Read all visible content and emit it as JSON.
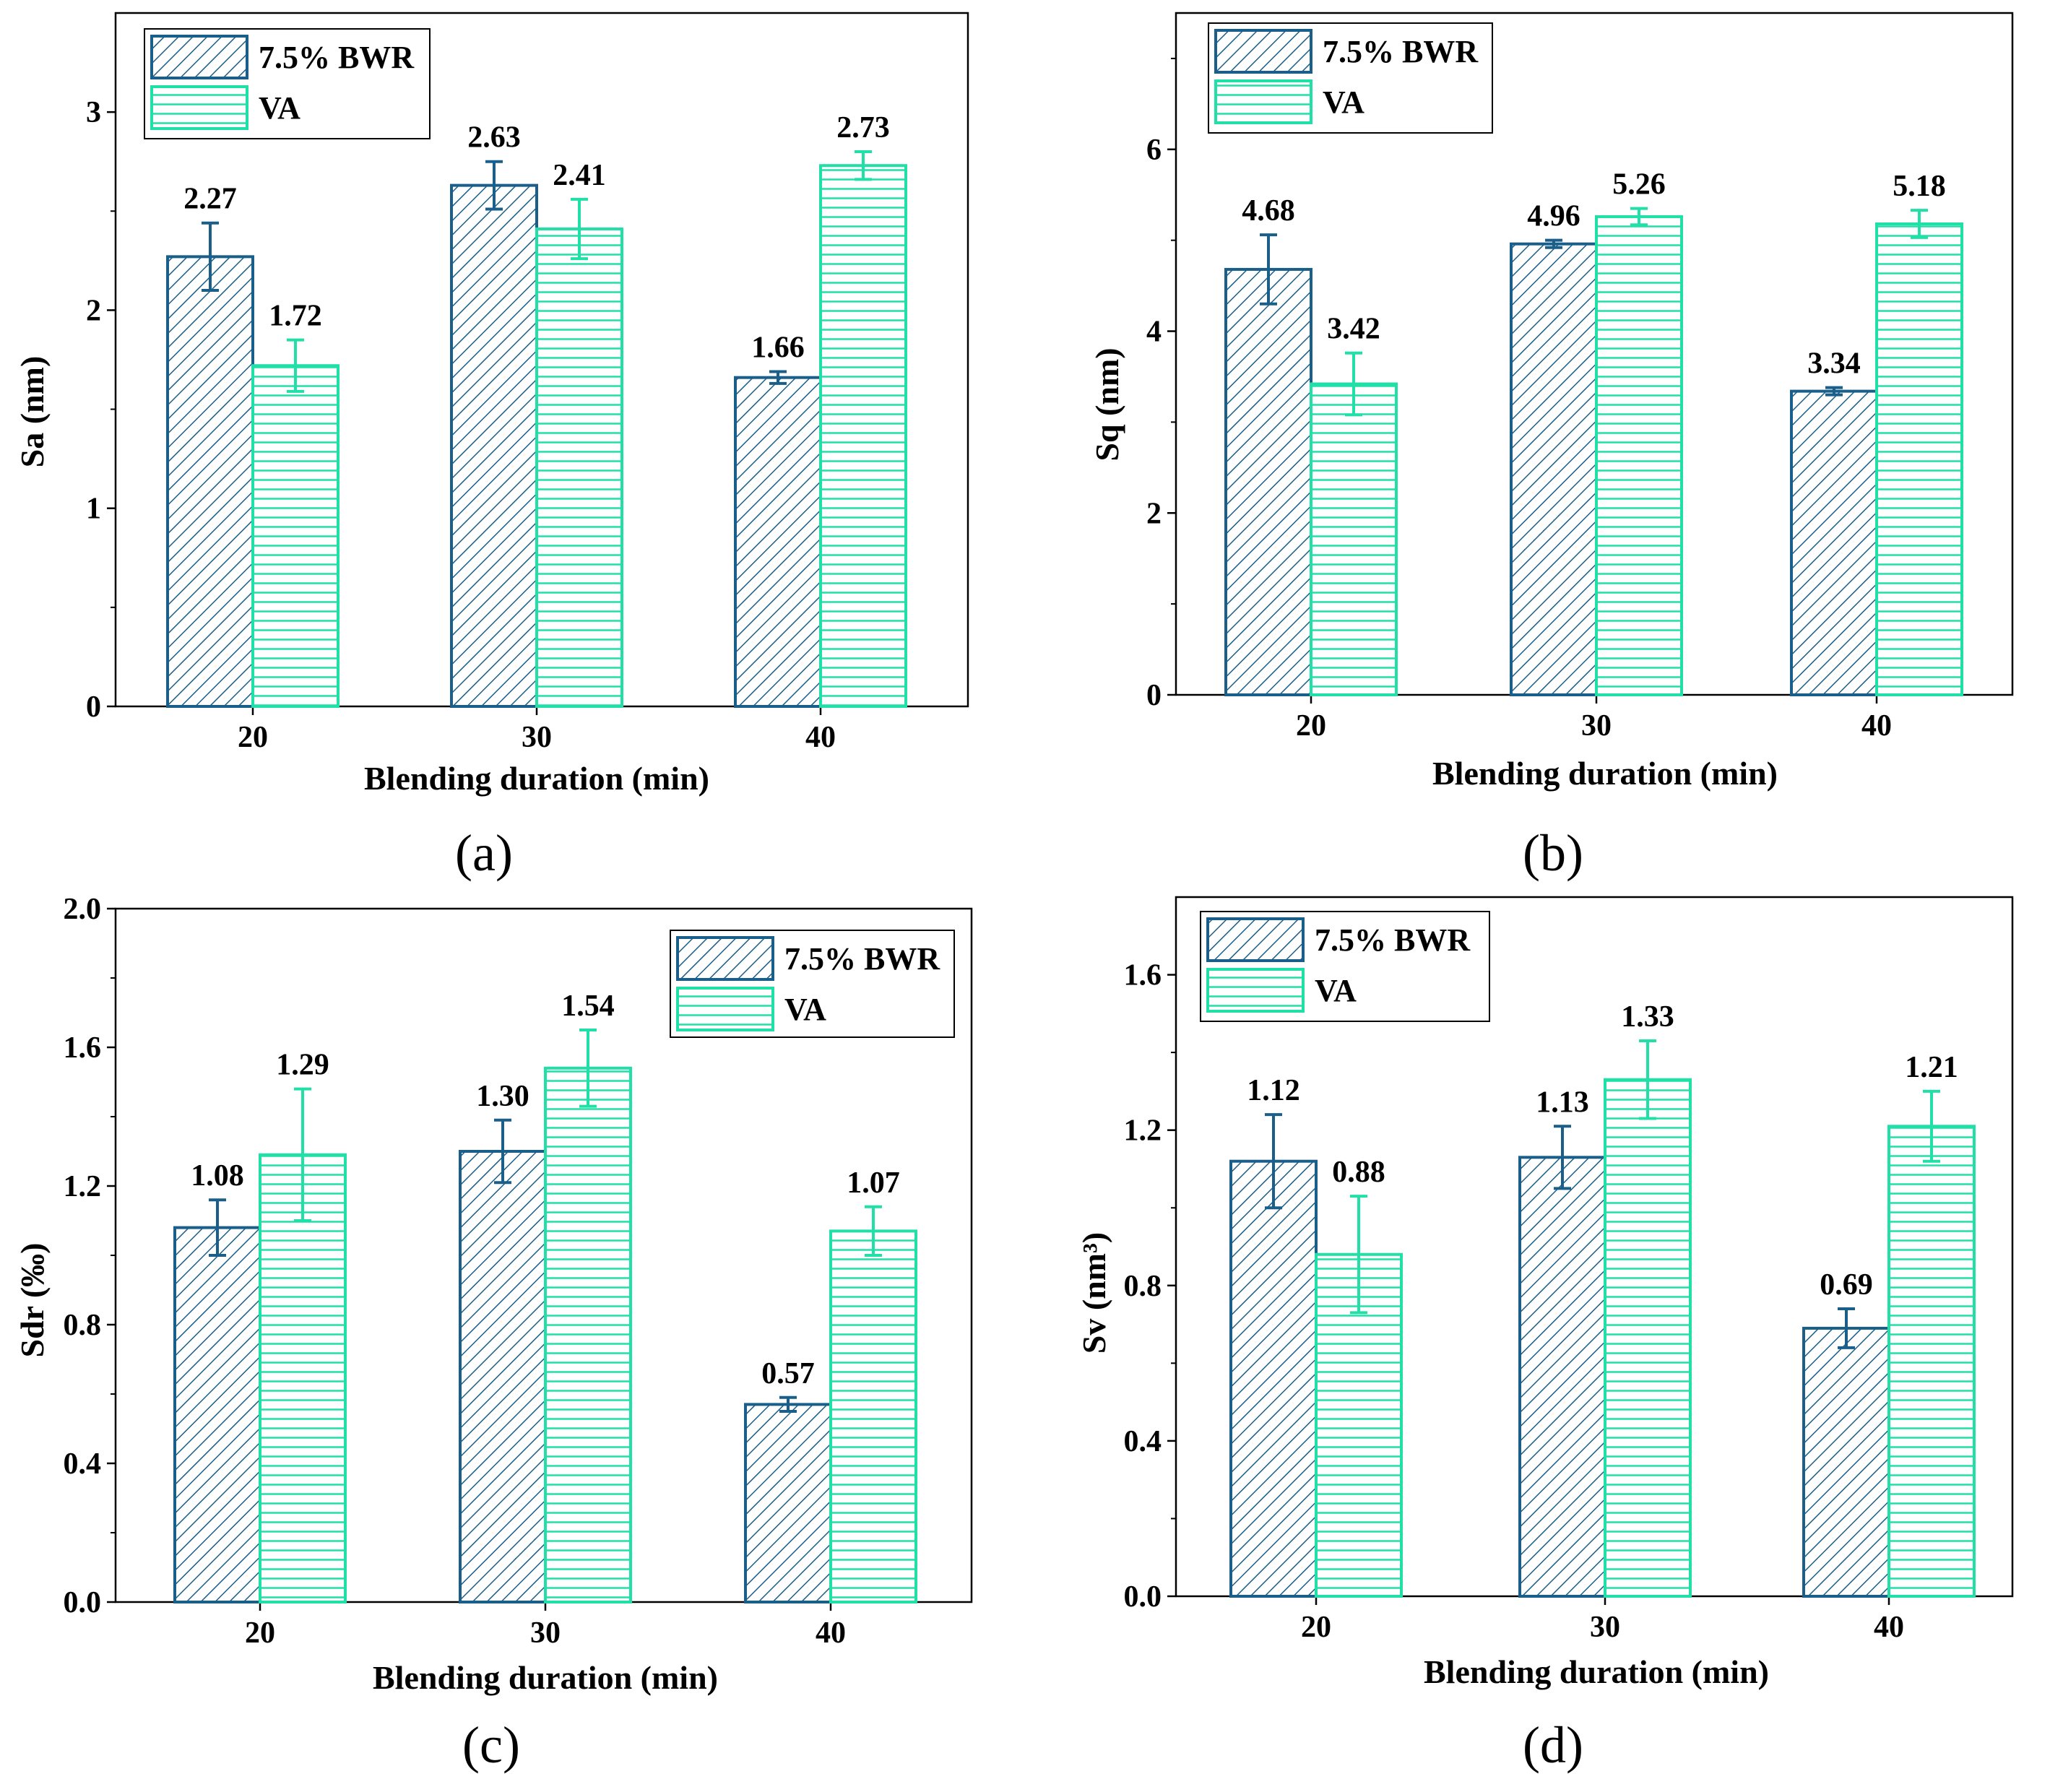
{
  "colors": {
    "bwr": "#1a5e8a",
    "va": "#20e0a8",
    "axis": "#000000"
  },
  "chart_data": [
    {
      "type": "bar",
      "panel": "a",
      "categories": [
        "20",
        "30",
        "40"
      ],
      "xlabel": "Blending duration (min)",
      "ylabel": "Sa (nm)",
      "ylim": [
        0,
        3.5
      ],
      "yticks": [
        "0",
        "1",
        "2",
        "3"
      ],
      "ytick_values": [
        0,
        1,
        2,
        3
      ],
      "legend_position": "top-left",
      "series": [
        {
          "name": "7.5% BWR",
          "values": [
            2.27,
            2.63,
            1.66
          ],
          "errors": [
            0.17,
            0.12,
            0.03
          ],
          "labels": [
            "2.27",
            "2.63",
            "1.66"
          ],
          "pattern": "diagonal-hatch"
        },
        {
          "name": "VA",
          "values": [
            1.72,
            2.41,
            2.73
          ],
          "errors": [
            0.13,
            0.15,
            0.07
          ],
          "labels": [
            "1.72",
            "2.41",
            "2.73"
          ],
          "pattern": "horizontal-lines"
        }
      ]
    },
    {
      "type": "bar",
      "panel": "b",
      "categories": [
        "20",
        "30",
        "40"
      ],
      "xlabel": "Blending duration (min)",
      "ylabel": "Sq (nm)",
      "ylim": [
        0,
        7.5
      ],
      "yticks": [
        "0",
        "2",
        "4",
        "6"
      ],
      "ytick_values": [
        0,
        2,
        4,
        6
      ],
      "legend_position": "top-left",
      "series": [
        {
          "name": "7.5% BWR",
          "values": [
            4.68,
            4.96,
            3.34
          ],
          "errors": [
            0.38,
            0.04,
            0.04
          ],
          "labels": [
            "4.68",
            "4.96",
            "3.34"
          ],
          "pattern": "diagonal-hatch"
        },
        {
          "name": "VA",
          "values": [
            3.42,
            5.26,
            5.18
          ],
          "errors": [
            0.34,
            0.09,
            0.15
          ],
          "labels": [
            "3.42",
            "5.26",
            "5.18"
          ],
          "pattern": "horizontal-lines"
        }
      ]
    },
    {
      "type": "bar",
      "panel": "c",
      "categories": [
        "20",
        "30",
        "40"
      ],
      "xlabel": "Blending duration (min)",
      "ylabel": "Sdr (‰)",
      "ylim": [
        0,
        2.0
      ],
      "yticks": [
        "0.0",
        "0.4",
        "0.8",
        "1.2",
        "1.6",
        "2.0"
      ],
      "ytick_values": [
        0,
        0.4,
        0.8,
        1.2,
        1.6,
        2.0
      ],
      "legend_position": "top-right",
      "series": [
        {
          "name": "7.5% BWR",
          "values": [
            1.08,
            1.3,
            0.57
          ],
          "errors": [
            0.08,
            0.09,
            0.02
          ],
          "labels": [
            "1.08",
            "1.30",
            "0.57"
          ],
          "pattern": "diagonal-hatch"
        },
        {
          "name": "VA",
          "values": [
            1.29,
            1.54,
            1.07
          ],
          "errors": [
            0.19,
            0.11,
            0.07
          ],
          "labels": [
            "1.29",
            "1.54",
            "1.07"
          ],
          "pattern": "horizontal-lines"
        }
      ]
    },
    {
      "type": "bar",
      "panel": "d",
      "categories": [
        "20",
        "30",
        "40"
      ],
      "xlabel": "Blending duration (min)",
      "ylabel": "Sv (nm³)",
      "ylim": [
        0,
        1.8
      ],
      "yticks": [
        "0.0",
        "0.4",
        "0.8",
        "1.2",
        "1.6"
      ],
      "ytick_values": [
        0,
        0.4,
        0.8,
        1.2,
        1.6
      ],
      "legend_position": "top-left",
      "series": [
        {
          "name": "7.5% BWR",
          "values": [
            1.12,
            1.13,
            0.69
          ],
          "errors": [
            0.12,
            0.08,
            0.05
          ],
          "labels": [
            "1.12",
            "1.13",
            "0.69"
          ],
          "pattern": "diagonal-hatch"
        },
        {
          "name": "VA",
          "values": [
            0.88,
            1.33,
            1.21
          ],
          "errors": [
            0.15,
            0.1,
            0.09
          ],
          "labels": [
            "0.88",
            "1.33",
            "1.21"
          ],
          "pattern": "horizontal-lines"
        }
      ]
    }
  ],
  "panel_labels": [
    "(a)",
    "(b)",
    "(c)",
    "(d)"
  ]
}
